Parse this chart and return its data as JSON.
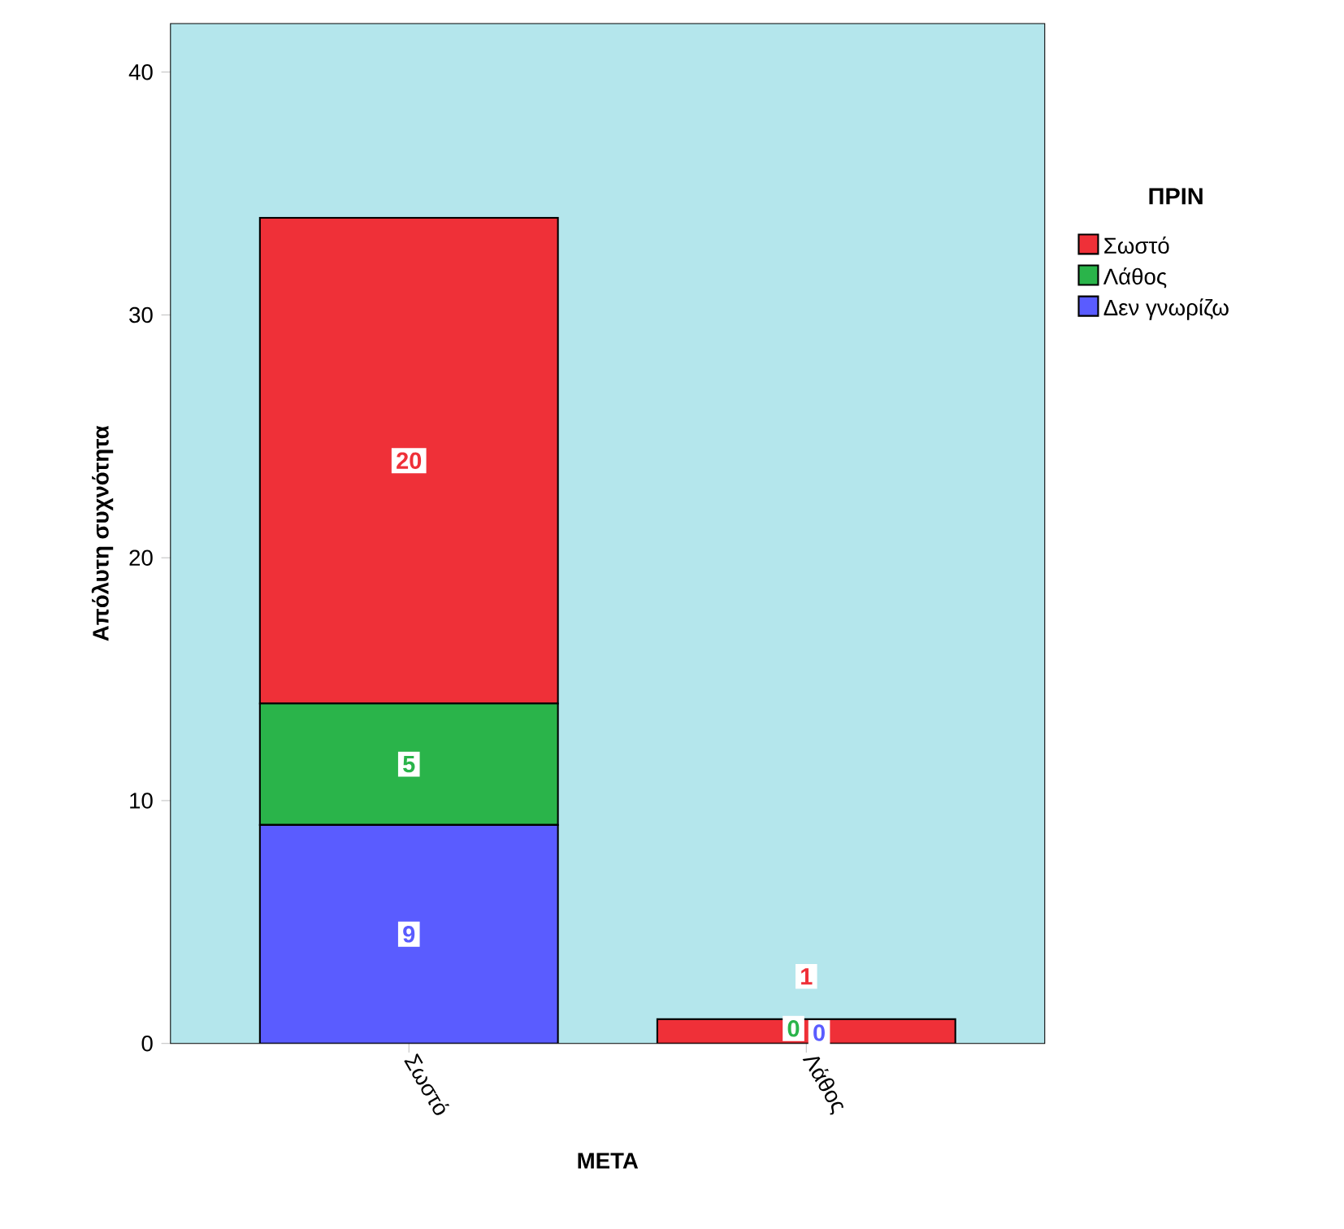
{
  "chart_data": {
    "type": "bar",
    "stacked": true,
    "xlabel": "ΜΕΤΑ",
    "ylabel": "Απόλυτη συχνότητα",
    "legend_title": "ΠΡΙΝ",
    "legend": "right",
    "categories": [
      "Σωστό",
      "Λάθος"
    ],
    "series": [
      {
        "name": "Δεν γνωρίζω",
        "color": "#5a5cff",
        "values": [
          9,
          0
        ]
      },
      {
        "name": "Λάθος",
        "color": "#2ab44a",
        "values": [
          5,
          0
        ]
      },
      {
        "name": "Σωστό",
        "color": "#ef3038",
        "values": [
          20,
          1
        ]
      }
    ],
    "ylim": [
      0,
      42
    ],
    "yticks": [
      0,
      10,
      20,
      30,
      40
    ],
    "data_labels": true
  }
}
